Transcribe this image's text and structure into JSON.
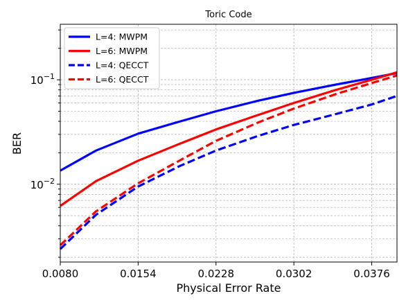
{
  "chart_data": {
    "type": "line",
    "title": "Toric Code",
    "xlabel": "Physical Error Rate",
    "ylabel": "BER",
    "xlim": [
      0.008,
      0.04
    ],
    "ylim": [
      0.0018,
      0.34
    ],
    "yscale": "log",
    "x_ticks": [
      "0.0080",
      "0.0154",
      "0.0228",
      "0.0302",
      "0.0376"
    ],
    "y_ticks": [
      {
        "base": "10",
        "exp": "−1"
      },
      {
        "base": "10",
        "exp": "−2"
      }
    ],
    "grid": true,
    "legend_position": "top-left",
    "x": [
      0.008,
      0.0114,
      0.0154,
      0.0194,
      0.0228,
      0.0268,
      0.0302,
      0.0342,
      0.0376,
      0.04
    ],
    "series": [
      {
        "name": "L=4: MWPM",
        "color": "#0000ff",
        "style": "solid",
        "values": [
          0.0135,
          0.021,
          0.0305,
          0.04,
          0.05,
          0.063,
          0.075,
          0.09,
          0.104,
          0.116
        ]
      },
      {
        "name": "L=6: MWPM",
        "color": "#ff0000",
        "style": "solid",
        "values": [
          0.0062,
          0.0107,
          0.0168,
          0.0245,
          0.0335,
          0.046,
          0.06,
          0.08,
          0.1,
          0.118
        ]
      },
      {
        "name": "L=4: QECCT",
        "color": "#0000ff",
        "style": "dashed",
        "values": [
          0.0024,
          0.0051,
          0.0095,
          0.015,
          0.021,
          0.029,
          0.037,
          0.047,
          0.058,
          0.07
        ]
      },
      {
        "name": "L=6: QECCT",
        "color": "#ff0000",
        "style": "dashed",
        "values": [
          0.0026,
          0.0055,
          0.0102,
          0.017,
          0.026,
          0.039,
          0.053,
          0.073,
          0.093,
          0.11
        ]
      }
    ]
  }
}
